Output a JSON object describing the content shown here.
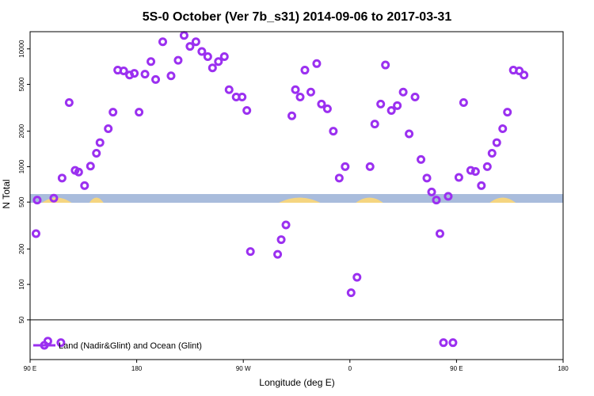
{
  "chart_data": {
    "type": "scatter",
    "title": "5S-0 October (Ver 7b_s31)   2014-09-06 to 2017-03-31",
    "xlabel": "Longitude (deg E)",
    "ylabel": "N Total",
    "y_scale": "log",
    "ylim": [
      23,
      14000
    ],
    "x_ticks": [
      {
        "value": 90,
        "label": "90 E"
      },
      {
        "value": 180,
        "label": "180"
      },
      {
        "value": 270,
        "label": "90 W"
      },
      {
        "value": 360,
        "label": "0"
      },
      {
        "value": 450,
        "label": "90 E"
      },
      {
        "value": 540,
        "label": "180"
      }
    ],
    "y_ticks": [
      50,
      100,
      200,
      500,
      1000,
      2000,
      5000,
      10000
    ],
    "separator_y": 50,
    "band": {
      "colors": {
        "ocean": "#a9bcdc",
        "land": "#f5d580"
      }
    },
    "series": [
      {
        "name": "Land (Nadir&Glint) and Ocean (Glint)",
        "color": "#9b30f0",
        "marker": "circle-open",
        "points": [
          [
            95,
            270
          ],
          [
            96,
            520
          ],
          [
            105,
            33
          ],
          [
            110,
            540
          ],
          [
            116,
            32
          ],
          [
            117,
            800
          ],
          [
            123,
            3500
          ],
          [
            128,
            930
          ],
          [
            131,
            900
          ],
          [
            136,
            690
          ],
          [
            141,
            1010
          ],
          [
            146,
            1300
          ],
          [
            149,
            1600
          ],
          [
            156,
            2100
          ],
          [
            160,
            2900
          ],
          [
            164,
            6600
          ],
          [
            169,
            6500
          ],
          [
            174,
            6000
          ],
          [
            178,
            6200
          ],
          [
            182,
            2900
          ],
          [
            187,
            6100
          ],
          [
            192,
            7800
          ],
          [
            196,
            5500
          ],
          [
            202,
            11500
          ],
          [
            209,
            5900
          ],
          [
            215,
            8000
          ],
          [
            220,
            13000
          ],
          [
            225,
            10500
          ],
          [
            230,
            11500
          ],
          [
            235,
            9500
          ],
          [
            240,
            8600
          ],
          [
            244,
            6900
          ],
          [
            249,
            7800
          ],
          [
            254,
            8600
          ],
          [
            258,
            4500
          ],
          [
            264,
            3900
          ],
          [
            269,
            3900
          ],
          [
            273,
            3000
          ],
          [
            276,
            190
          ],
          [
            299,
            180
          ],
          [
            302,
            240
          ],
          [
            306,
            320
          ],
          [
            311,
            2700
          ],
          [
            314,
            4500
          ],
          [
            318,
            3900
          ],
          [
            322,
            6600
          ],
          [
            327,
            4300
          ],
          [
            332,
            7500
          ],
          [
            336,
            3400
          ],
          [
            341,
            3100
          ],
          [
            346,
            2000
          ],
          [
            351,
            800
          ],
          [
            356,
            1000
          ],
          [
            361,
            85
          ],
          [
            366,
            115
          ],
          [
            377,
            1000
          ],
          [
            381,
            2300
          ],
          [
            386,
            3400
          ],
          [
            390,
            7300
          ],
          [
            395,
            3000
          ],
          [
            400,
            3300
          ],
          [
            405,
            4300
          ],
          [
            410,
            1900
          ],
          [
            415,
            3900
          ],
          [
            420,
            1150
          ],
          [
            425,
            800
          ],
          [
            429,
            610
          ],
          [
            433,
            520
          ],
          [
            436,
            270
          ],
          [
            439,
            32
          ],
          [
            443,
            560
          ],
          [
            447,
            32
          ],
          [
            452,
            810
          ],
          [
            456,
            3500
          ],
          [
            462,
            930
          ],
          [
            466,
            910
          ],
          [
            471,
            690
          ],
          [
            476,
            1000
          ],
          [
            480,
            1300
          ],
          [
            484,
            1600
          ],
          [
            489,
            2100
          ],
          [
            493,
            2900
          ],
          [
            498,
            6600
          ],
          [
            503,
            6500
          ],
          [
            507,
            6000
          ]
        ]
      }
    ],
    "legend": {
      "position": "bottom-left",
      "label": "Land (Nadir&Glint) and Ocean (Glint)"
    }
  }
}
